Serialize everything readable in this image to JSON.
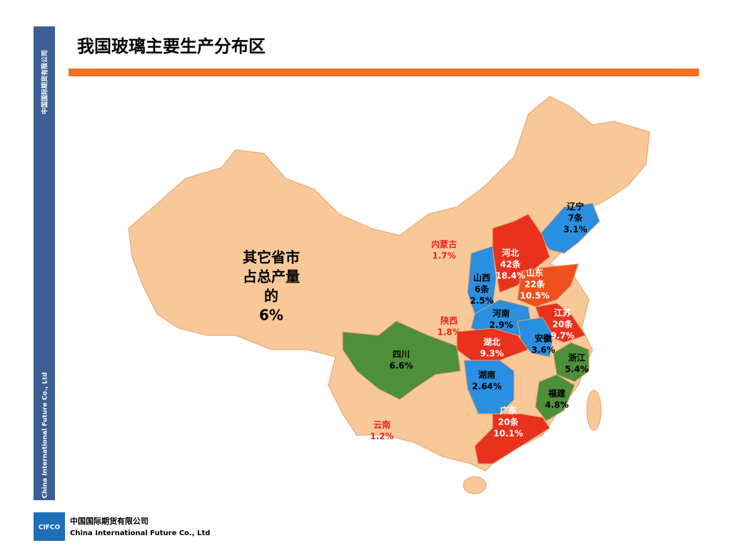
{
  "header": {
    "title": "我国玻璃主要生产分布区"
  },
  "sidebar": {
    "top": "中国国际期货有限公司",
    "bottom": "China International Future Co., Ltd"
  },
  "footer": {
    "logo": "CIFCO",
    "company_cn": "中国国际期货有限公司",
    "company_en": "China International Future Co., Ltd"
  },
  "map": {
    "other": [
      "其它省市",
      "占总产量",
      "的",
      "6%"
    ],
    "regions": [
      {
        "lines": [
          "辽宁",
          "7条",
          "3.1%"
        ]
      },
      {
        "lines": [
          "内蒙古",
          "1.7%"
        ]
      },
      {
        "lines": [
          "河北",
          "42条",
          "18.4%"
        ]
      },
      {
        "lines": [
          "山西",
          "6条",
          "2.5%"
        ]
      },
      {
        "lines": [
          "山东",
          "22条",
          "10.5%"
        ]
      },
      {
        "lines": [
          "河南",
          "2.9%"
        ]
      },
      {
        "lines": [
          "江苏",
          "20条",
          "9.7%"
        ]
      },
      {
        "lines": [
          "陕西",
          "1.8%"
        ]
      },
      {
        "lines": [
          "湖北",
          "9.3%"
        ]
      },
      {
        "lines": [
          "安徽",
          "3.6%"
        ]
      },
      {
        "lines": [
          "浙江",
          "5.4%"
        ]
      },
      {
        "lines": [
          "四川",
          "6.6%"
        ]
      },
      {
        "lines": [
          "湖南",
          "2.64%"
        ]
      },
      {
        "lines": [
          "福建",
          "4.8%"
        ]
      },
      {
        "lines": [
          "云南",
          "1.2%"
        ]
      },
      {
        "lines": [
          "广东",
          "20条",
          "10.1%"
        ]
      }
    ]
  }
}
